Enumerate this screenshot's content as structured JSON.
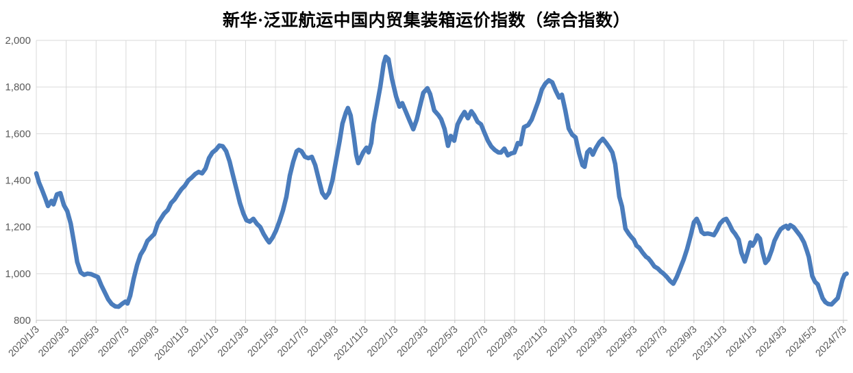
{
  "page": {
    "background": "#FFFFFF"
  },
  "chart_data": {
    "type": "line",
    "title": "新华·泛亚航运中国内贸集装箱运价指数（综合指数）",
    "legend": "none",
    "grid": "major gridlines horizontal and vertical, light gray",
    "ylim": [
      800,
      2000
    ],
    "y_ticks": [
      800,
      1000,
      1200,
      1400,
      1600,
      1800,
      2000
    ],
    "y_tick_labels": [
      "800",
      "1,000",
      "1,200",
      "1,400",
      "1,600",
      "1,800",
      "2,000"
    ],
    "x_unit": "weeks since 2020/1/3 (weekly index readings)",
    "x_tick_labels": [
      "2020/1/3",
      "2020/3/3",
      "2020/5/3",
      "2020/7/3",
      "2020/9/3",
      "2020/11/3",
      "2021/1/3",
      "2021/3/3",
      "2021/5/3",
      "2021/7/3",
      "2021/9/3",
      "2021/11/3",
      "2022/1/3",
      "2022/3/3",
      "2022/5/3",
      "2022/7/3",
      "2022/9/3",
      "2022/11/3",
      "2023/1/3",
      "2023/3/3",
      "2023/5/3",
      "2023/7/3",
      "2023/9/3",
      "2023/11/3",
      "2024/1/3",
      "2024/3/3",
      "2024/5/3",
      "2024/7/3"
    ],
    "colors": {
      "series": "#4A7CBC",
      "gridline": "#D9D9D9",
      "axis_line": "#BFBFBF",
      "tick_label": "#595959",
      "title": "#000000"
    },
    "series": [
      {
        "name": "综合指数",
        "color": "#4A7CBC",
        "points": [
          [
            0,
            1430
          ],
          [
            0.8,
            1390
          ],
          [
            1.6,
            1362
          ],
          [
            2.6,
            1323
          ],
          [
            3.4,
            1290
          ],
          [
            4.4,
            1312
          ],
          [
            5,
            1297
          ],
          [
            6,
            1340
          ],
          [
            7,
            1345
          ],
          [
            8,
            1294
          ],
          [
            9,
            1268
          ],
          [
            10,
            1215
          ],
          [
            11,
            1130
          ],
          [
            11.9,
            1050
          ],
          [
            12.9,
            1005
          ],
          [
            13.9,
            995
          ],
          [
            14.9,
            1000
          ],
          [
            15.9,
            998
          ],
          [
            16.9,
            992
          ],
          [
            17.9,
            985
          ],
          [
            18.9,
            950
          ],
          [
            19.9,
            920
          ],
          [
            20.9,
            890
          ],
          [
            21.9,
            870
          ],
          [
            22.9,
            860
          ],
          [
            23.9,
            858
          ],
          [
            24.9,
            870
          ],
          [
            25.9,
            880
          ],
          [
            26.5,
            872
          ],
          [
            27.3,
            905
          ],
          [
            28.3,
            978
          ],
          [
            29.3,
            1037
          ],
          [
            30.3,
            1081
          ],
          [
            31.3,
            1105
          ],
          [
            32.3,
            1140
          ],
          [
            33.3,
            1155
          ],
          [
            34.3,
            1170
          ],
          [
            35.3,
            1214
          ],
          [
            36.2,
            1235
          ],
          [
            37.2,
            1258
          ],
          [
            38.2,
            1273
          ],
          [
            39.2,
            1303
          ],
          [
            40.2,
            1318
          ],
          [
            41.2,
            1341
          ],
          [
            42.2,
            1362
          ],
          [
            43.2,
            1377
          ],
          [
            44.2,
            1400
          ],
          [
            45.2,
            1412
          ],
          [
            46.2,
            1427
          ],
          [
            47.2,
            1436
          ],
          [
            48.2,
            1430
          ],
          [
            49.2,
            1451
          ],
          [
            50.2,
            1495
          ],
          [
            51.2,
            1519
          ],
          [
            52.2,
            1531
          ],
          [
            53.2,
            1549
          ],
          [
            54.2,
            1546
          ],
          [
            55.2,
            1525
          ],
          [
            56.2,
            1481
          ],
          [
            57.2,
            1421
          ],
          [
            58.2,
            1362
          ],
          [
            59.2,
            1303
          ],
          [
            60.2,
            1258
          ],
          [
            61.1,
            1229
          ],
          [
            62.1,
            1223
          ],
          [
            63.1,
            1235
          ],
          [
            64.1,
            1214
          ],
          [
            65.1,
            1200
          ],
          [
            66.1,
            1170
          ],
          [
            67.1,
            1146
          ],
          [
            67.7,
            1134
          ],
          [
            68.7,
            1155
          ],
          [
            69.7,
            1185
          ],
          [
            70.7,
            1225
          ],
          [
            71.7,
            1270
          ],
          [
            72.7,
            1330
          ],
          [
            73.7,
            1420
          ],
          [
            74.7,
            1480
          ],
          [
            75.7,
            1525
          ],
          [
            76.3,
            1531
          ],
          [
            77.1,
            1525
          ],
          [
            78.1,
            1501
          ],
          [
            79.1,
            1495
          ],
          [
            80.1,
            1501
          ],
          [
            81.1,
            1465
          ],
          [
            82.1,
            1406
          ],
          [
            83.1,
            1347
          ],
          [
            84.1,
            1326
          ],
          [
            85.1,
            1347
          ],
          [
            86.1,
            1400
          ],
          [
            87.1,
            1481
          ],
          [
            88.2,
            1570
          ],
          [
            89,
            1643
          ],
          [
            90,
            1690
          ],
          [
            90.6,
            1710
          ],
          [
            91.4,
            1678
          ],
          [
            92.4,
            1580
          ],
          [
            93,
            1510
          ],
          [
            93.6,
            1474
          ],
          [
            94.4,
            1500
          ],
          [
            95,
            1519
          ],
          [
            96,
            1540
          ],
          [
            96.6,
            1520
          ],
          [
            97.4,
            1560
          ],
          [
            98,
            1640
          ],
          [
            99,
            1720
          ],
          [
            100,
            1800
          ],
          [
            101,
            1900
          ],
          [
            101.6,
            1930
          ],
          [
            102.4,
            1920
          ],
          [
            103.4,
            1835
          ],
          [
            104.6,
            1760
          ],
          [
            105.6,
            1716
          ],
          [
            106.4,
            1731
          ],
          [
            107.4,
            1696
          ],
          [
            108.4,
            1660
          ],
          [
            109.6,
            1619
          ],
          [
            110.6,
            1660
          ],
          [
            111.6,
            1720
          ],
          [
            112.5,
            1775
          ],
          [
            113.7,
            1795
          ],
          [
            114.5,
            1770
          ],
          [
            115.7,
            1700
          ],
          [
            116.9,
            1680
          ],
          [
            117.7,
            1662
          ],
          [
            118.7,
            1620
          ],
          [
            119.7,
            1548
          ],
          [
            120.5,
            1590
          ],
          [
            121.5,
            1570
          ],
          [
            122.5,
            1640
          ],
          [
            123.5,
            1670
          ],
          [
            124.5,
            1693
          ],
          [
            125.5,
            1666
          ],
          [
            126.5,
            1696
          ],
          [
            127.3,
            1680
          ],
          [
            128.3,
            1651
          ],
          [
            129.3,
            1640
          ],
          [
            130.3,
            1604
          ],
          [
            131.3,
            1570
          ],
          [
            132.3,
            1545
          ],
          [
            133.3,
            1530
          ],
          [
            134.3,
            1520
          ],
          [
            135.1,
            1519
          ],
          [
            136.1,
            1536
          ],
          [
            137.1,
            1507
          ],
          [
            138,
            1515
          ],
          [
            139,
            1519
          ],
          [
            140,
            1560
          ],
          [
            140.8,
            1555
          ],
          [
            141.8,
            1628
          ],
          [
            143,
            1637
          ],
          [
            144,
            1660
          ],
          [
            145,
            1700
          ],
          [
            146,
            1740
          ],
          [
            147,
            1790
          ],
          [
            148,
            1815
          ],
          [
            149,
            1829
          ],
          [
            150,
            1820
          ],
          [
            151,
            1785
          ],
          [
            152,
            1755
          ],
          [
            152.8,
            1767
          ],
          [
            153.8,
            1700
          ],
          [
            154.8,
            1622
          ],
          [
            155.8,
            1596
          ],
          [
            156.8,
            1584
          ],
          [
            157.8,
            1516
          ],
          [
            158.8,
            1465
          ],
          [
            159.4,
            1458
          ],
          [
            160.2,
            1520
          ],
          [
            161,
            1533
          ],
          [
            161.8,
            1510
          ],
          [
            162.7,
            1539
          ],
          [
            163.7,
            1563
          ],
          [
            164.7,
            1578
          ],
          [
            165.7,
            1560
          ],
          [
            166.7,
            1539
          ],
          [
            167.5,
            1519
          ],
          [
            168.3,
            1470
          ],
          [
            168.9,
            1400
          ],
          [
            169.5,
            1330
          ],
          [
            170.3,
            1288
          ],
          [
            171.3,
            1193
          ],
          [
            172.3,
            1170
          ],
          [
            173.1,
            1155
          ],
          [
            173.7,
            1146
          ],
          [
            174.5,
            1120
          ],
          [
            175.3,
            1111
          ],
          [
            176.3,
            1090
          ],
          [
            177.3,
            1072
          ],
          [
            177.9,
            1066
          ],
          [
            178.7,
            1052
          ],
          [
            179.7,
            1031
          ],
          [
            180.7,
            1022
          ],
          [
            181.5,
            1010
          ],
          [
            182.3,
            1001
          ],
          [
            183.3,
            986
          ],
          [
            184.3,
            968
          ],
          [
            185.2,
            957
          ],
          [
            186.2,
            985
          ],
          [
            187.2,
            1022
          ],
          [
            188.2,
            1060
          ],
          [
            189.2,
            1105
          ],
          [
            190.2,
            1160
          ],
          [
            191.2,
            1220
          ],
          [
            192,
            1235
          ],
          [
            192.8,
            1210
          ],
          [
            193.4,
            1179
          ],
          [
            194.2,
            1170
          ],
          [
            195.2,
            1172
          ],
          [
            196,
            1170
          ],
          [
            197,
            1165
          ],
          [
            197.8,
            1185
          ],
          [
            198.8,
            1215
          ],
          [
            199.8,
            1230
          ],
          [
            200.6,
            1235
          ],
          [
            201.4,
            1215
          ],
          [
            202.4,
            1185
          ],
          [
            203.2,
            1170
          ],
          [
            204.2,
            1146
          ],
          [
            205,
            1090
          ],
          [
            206,
            1052
          ],
          [
            206.8,
            1090
          ],
          [
            207.6,
            1134
          ],
          [
            208.2,
            1120
          ],
          [
            209,
            1140
          ],
          [
            209.6,
            1164
          ],
          [
            210.4,
            1150
          ],
          [
            211.2,
            1090
          ],
          [
            212,
            1046
          ],
          [
            212.8,
            1060
          ],
          [
            213.8,
            1100
          ],
          [
            214.6,
            1140
          ],
          [
            215.6,
            1170
          ],
          [
            216.4,
            1190
          ],
          [
            217.2,
            1199
          ],
          [
            218,
            1205
          ],
          [
            218.6,
            1193
          ],
          [
            219.2,
            1208
          ],
          [
            220.2,
            1199
          ],
          [
            221.2,
            1180
          ],
          [
            222.2,
            1161
          ],
          [
            223.2,
            1134
          ],
          [
            224,
            1100
          ],
          [
            224.6,
            1072
          ],
          [
            225.6,
            990
          ],
          [
            226.4,
            965
          ],
          [
            227.2,
            954
          ],
          [
            228,
            920
          ],
          [
            228.6,
            895
          ],
          [
            229.4,
            878
          ],
          [
            230.2,
            870
          ],
          [
            231.2,
            868
          ],
          [
            232,
            880
          ],
          [
            233,
            895
          ],
          [
            233.8,
            940
          ],
          [
            234.4,
            975
          ],
          [
            235,
            995
          ],
          [
            235.6,
            1000
          ]
        ]
      }
    ]
  }
}
